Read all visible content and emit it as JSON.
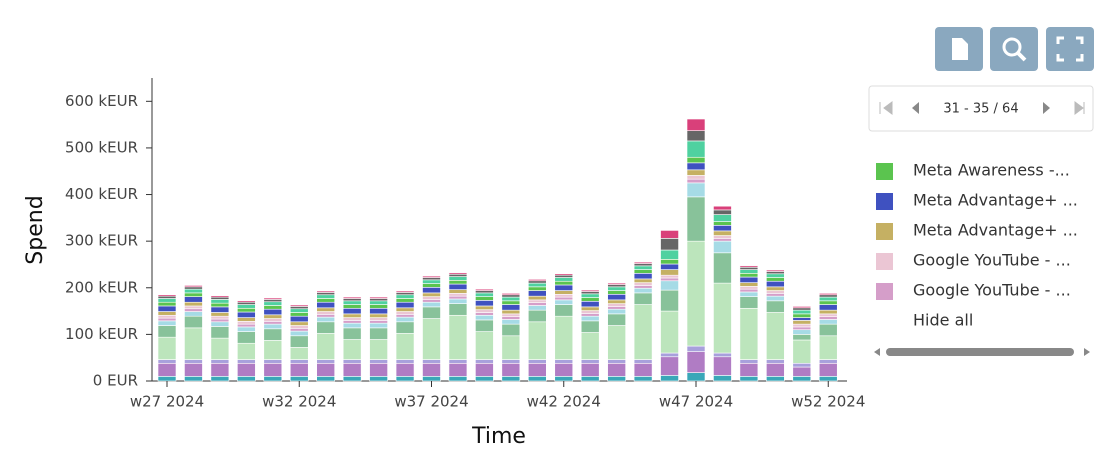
{
  "chart_data": {
    "type": "stacked_bar",
    "x_label": "Time",
    "y_label": "Spend",
    "categories": [
      "w27 2024",
      null,
      null,
      null,
      null,
      "w32 2024",
      null,
      null,
      null,
      null,
      "w37 2024",
      null,
      null,
      null,
      null,
      "w42 2024",
      null,
      null,
      null,
      null,
      "w47 2024",
      null,
      null,
      null,
      null,
      "w52 2024"
    ],
    "ylim": [
      0,
      650
    ],
    "yticks": [
      {
        "value": 0,
        "label": "0 EUR"
      },
      {
        "value": 100,
        "label": "100 kEUR"
      },
      {
        "value": 200,
        "label": "200 kEUR"
      },
      {
        "value": 300,
        "label": "300 kEUR"
      },
      {
        "value": 400,
        "label": "400 kEUR"
      },
      {
        "value": 500,
        "label": "500 kEUR"
      },
      {
        "value": 600,
        "label": "600 kEUR"
      }
    ],
    "series": [
      {
        "color": "#3aa7b8",
        "values": [
          10,
          10,
          10,
          10,
          10,
          10,
          10,
          10,
          10,
          10,
          10,
          10,
          10,
          10,
          10,
          10,
          10,
          10,
          10,
          12,
          18,
          12,
          10,
          10,
          10,
          10
        ]
      },
      {
        "color": "#b07cc4",
        "values": [
          28,
          28,
          28,
          28,
          28,
          28,
          28,
          28,
          28,
          28,
          28,
          28,
          28,
          28,
          28,
          28,
          28,
          28,
          28,
          40,
          45,
          40,
          28,
          28,
          20,
          28
        ]
      },
      {
        "color": "#a8a0dc",
        "values": [
          8,
          8,
          8,
          8,
          8,
          8,
          8,
          8,
          8,
          8,
          8,
          8,
          8,
          8,
          8,
          8,
          8,
          8,
          8,
          8,
          12,
          8,
          8,
          8,
          8,
          8
        ]
      },
      {
        "color": "#bce5bc",
        "values": [
          48,
          68,
          46,
          35,
          41,
          26,
          56,
          43,
          43,
          56,
          88,
          95,
          60,
          51,
          81,
          93,
          58,
          73,
          118,
          90,
          225,
          150,
          110,
          101,
          50,
          51
        ]
      },
      {
        "color": "#88c29a",
        "values": [
          25,
          25,
          25,
          25,
          25,
          25,
          25,
          25,
          25,
          25,
          25,
          25,
          25,
          25,
          25,
          25,
          25,
          25,
          25,
          45,
          95,
          65,
          25,
          25,
          12,
          25
        ]
      },
      {
        "color": "#a6dbe6",
        "values": [
          10,
          10,
          10,
          10,
          10,
          10,
          10,
          10,
          10,
          10,
          10,
          10,
          10,
          10,
          10,
          10,
          10,
          10,
          10,
          20,
          30,
          25,
          10,
          10,
          10,
          10
        ]
      },
      {
        "name": "Google YouTube - ...",
        "color": "#d59ec9",
        "values": [
          6,
          6,
          6,
          6,
          6,
          6,
          6,
          6,
          6,
          6,
          6,
          6,
          6,
          6,
          6,
          6,
          6,
          6,
          6,
          6,
          8,
          6,
          6,
          6,
          6,
          6
        ]
      },
      {
        "name": "Google YouTube - ...",
        "color": "#ebc6d4",
        "values": [
          6,
          6,
          6,
          6,
          6,
          6,
          6,
          6,
          6,
          6,
          6,
          6,
          6,
          6,
          6,
          6,
          6,
          6,
          6,
          6,
          8,
          6,
          6,
          6,
          6,
          6
        ]
      },
      {
        "name": "Meta Advantage+ ...",
        "color": "#c5b063",
        "values": [
          8,
          8,
          8,
          8,
          8,
          8,
          8,
          8,
          8,
          8,
          8,
          8,
          8,
          8,
          8,
          8,
          8,
          8,
          8,
          12,
          12,
          10,
          8,
          8,
          8,
          8
        ]
      },
      {
        "name": "Meta Advantage+ ...",
        "color": "#3f51c0",
        "values": [
          12,
          12,
          12,
          12,
          12,
          12,
          12,
          12,
          12,
          12,
          12,
          12,
          12,
          12,
          12,
          12,
          12,
          12,
          12,
          12,
          15,
          12,
          12,
          12,
          6,
          12
        ]
      },
      {
        "name": "Meta Awareness -...",
        "color": "#5bc44f",
        "values": [
          8,
          8,
          8,
          8,
          8,
          8,
          8,
          8,
          8,
          8,
          8,
          8,
          8,
          8,
          8,
          8,
          8,
          8,
          8,
          10,
          12,
          8,
          8,
          8,
          8,
          8
        ]
      },
      {
        "color": "#4fd1a0",
        "values": [
          8,
          8,
          8,
          8,
          8,
          8,
          8,
          8,
          8,
          8,
          8,
          8,
          8,
          8,
          8,
          8,
          8,
          8,
          8,
          20,
          35,
          15,
          8,
          8,
          8,
          8
        ]
      },
      {
        "color": "#666666",
        "values": [
          5,
          5,
          5,
          5,
          5,
          5,
          5,
          5,
          5,
          5,
          5,
          5,
          5,
          5,
          5,
          5,
          5,
          5,
          5,
          25,
          22,
          10,
          5,
          5,
          5,
          5
        ]
      },
      {
        "color": "#d9407a",
        "values": [
          3,
          3,
          3,
          3,
          3,
          3,
          3,
          3,
          3,
          3,
          3,
          3,
          3,
          3,
          3,
          3,
          3,
          3,
          3,
          17,
          25,
          8,
          3,
          3,
          3,
          3
        ]
      }
    ]
  },
  "legend": {
    "pager": "31 - 35 / 64",
    "hide_all": "Hide all"
  }
}
